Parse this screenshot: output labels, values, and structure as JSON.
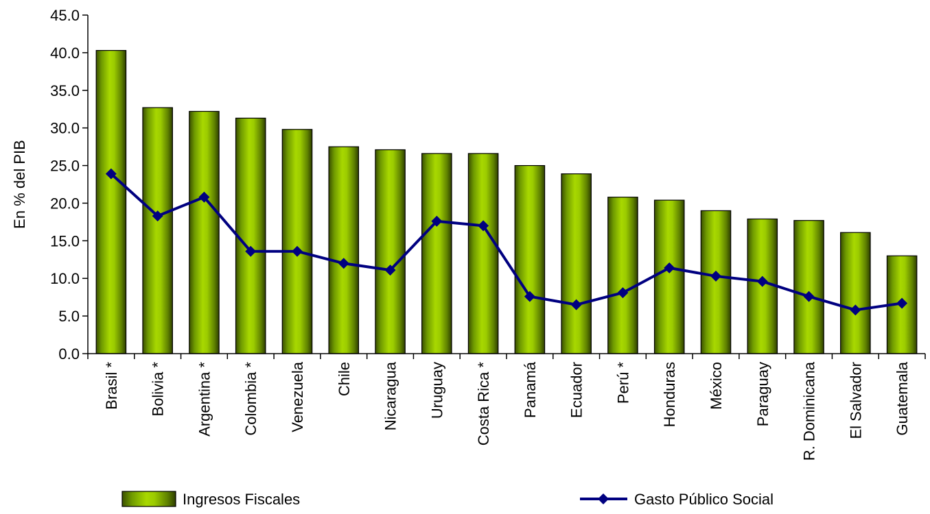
{
  "chart_data": {
    "type": "bar",
    "ylabel": "En % del PIB",
    "ylim": [
      0,
      45
    ],
    "yticks": [
      "0.0",
      "5.0",
      "10.0",
      "15.0",
      "20.0",
      "25.0",
      "30.0",
      "35.0",
      "40.0",
      "45.0"
    ],
    "categories": [
      "Brasil *",
      "Bolivia *",
      "Argentina *",
      "Colombia *",
      "Venezuela",
      "Chile",
      "Nicaragua",
      "Uruguay",
      "Costa Rica *",
      "Panamá",
      "Ecuador",
      "Perú *",
      "Honduras",
      "México",
      "Paraguay",
      "R. Dominicana",
      "El Salvador",
      "Guatemala"
    ],
    "series": [
      {
        "name": "Ingresos Fiscales",
        "kind": "bar",
        "color": "#8cc000",
        "values": [
          40.3,
          32.7,
          32.2,
          31.3,
          29.8,
          27.5,
          27.1,
          26.6,
          26.6,
          25.0,
          23.9,
          20.8,
          20.4,
          19.0,
          17.9,
          17.7,
          16.1,
          13.0
        ]
      },
      {
        "name": "Gasto Público Social",
        "kind": "line",
        "color": "#000080",
        "marker": "diamond",
        "values": [
          23.9,
          18.3,
          20.8,
          13.6,
          13.6,
          12.0,
          11.1,
          17.6,
          17.0,
          7.6,
          6.5,
          8.1,
          11.4,
          10.3,
          9.6,
          7.6,
          5.8,
          6.7
        ]
      }
    ],
    "grid": false,
    "legend": "bottom"
  }
}
